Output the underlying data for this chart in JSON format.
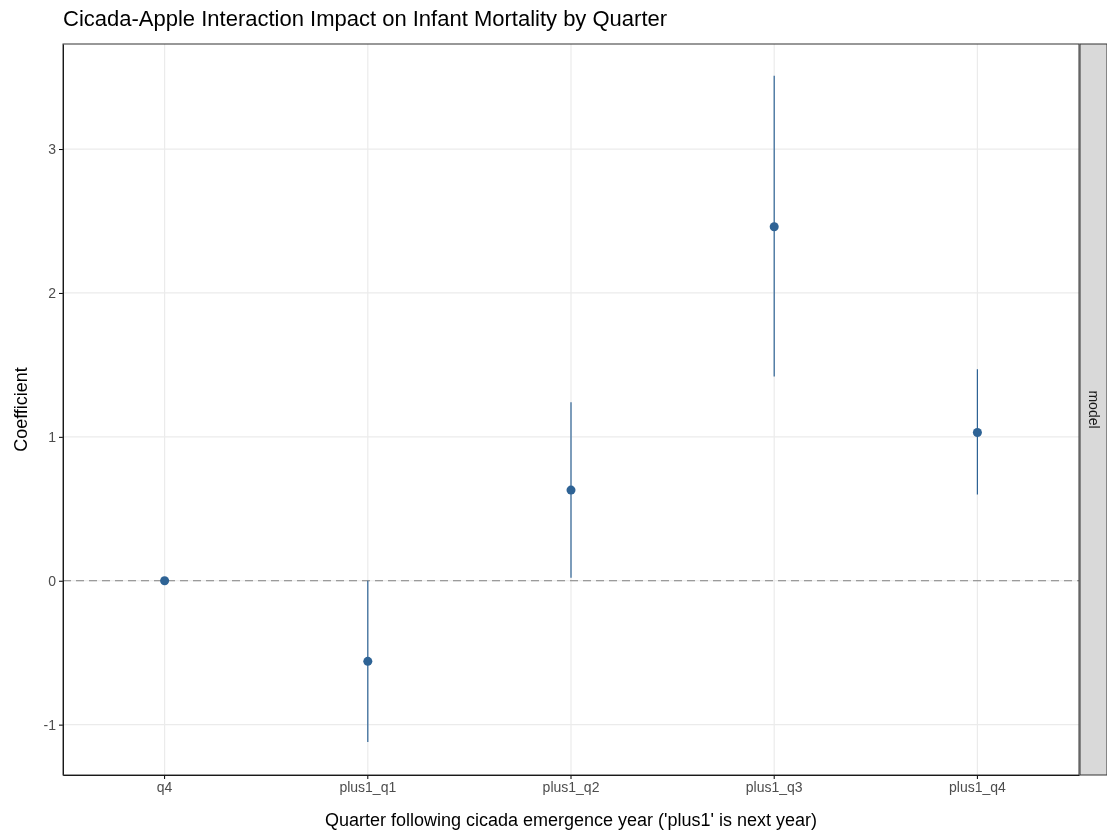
{
  "chart_data": {
    "type": "scatter",
    "title": "Cicada-Apple Interaction Impact on Infant Mortality by Quarter",
    "xlabel": "Quarter following cicada emergence year ('plus1' is next year)",
    "ylabel": "Coefficient",
    "categories": [
      "q4",
      "plus1_q1",
      "plus1_q2",
      "plus1_q3",
      "plus1_q4"
    ],
    "values": [
      0,
      -0.56,
      0.63,
      2.46,
      1.03
    ],
    "errors": [
      null,
      [
        -1.12,
        0
      ],
      [
        0.02,
        1.24
      ],
      [
        1.42,
        3.51
      ],
      [
        0.6,
        1.47
      ]
    ],
    "color": "#2e6395",
    "marker": "circle",
    "ylim": [
      -1.35,
      3.73
    ],
    "yticks": [
      -1,
      0,
      1,
      2,
      3
    ],
    "grid": true,
    "ref_lines": [
      {
        "axis": "y",
        "value": 0,
        "color": "#808080",
        "line_style": "dashed"
      }
    ],
    "annotations": [
      "model"
    ]
  }
}
